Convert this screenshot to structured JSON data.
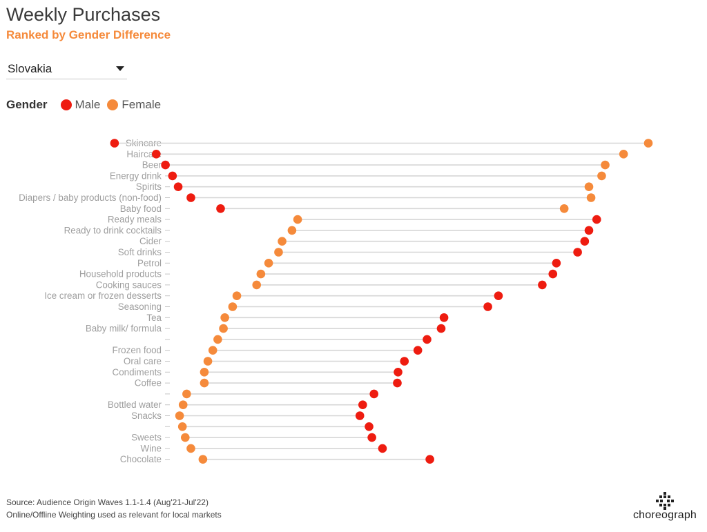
{
  "header": {
    "title": "Weekly Purchases",
    "subtitle": "Ranked by Gender Difference"
  },
  "filter": {
    "value": "Slovakia"
  },
  "legend": {
    "title": "Gender",
    "items": [
      {
        "label": "Male",
        "color": "#ee1c10"
      },
      {
        "label": "Female",
        "color": "#f58a3b"
      }
    ]
  },
  "colors": {
    "male": "#ee1c10",
    "female": "#f58a3b",
    "connector": "#d6d6d6",
    "tick_label": "#9e9e9e",
    "accent": "#f58a3b"
  },
  "chart_data": {
    "type": "scatter",
    "title": "",
    "xlabel": "",
    "ylabel": "",
    "xlim": [
      0,
      1
    ],
    "categories": [
      "Skincare",
      "Haircare",
      "Beer",
      "Energy drink",
      "Spirits",
      "Diapers / baby products (non-food)",
      "Baby food",
      "Ready meals",
      "Ready to drink cocktails",
      "Cider",
      "Soft drinks",
      "Petrol",
      "Household products",
      "Cooking sauces",
      "Ice cream or frozen desserts",
      "Seasoning",
      "Tea",
      "Baby milk/ formula",
      "",
      "Frozen food",
      "Oral care",
      "Condiments",
      "Coffee",
      "",
      "Bottled water",
      "Snacks",
      "",
      "Sweets",
      "Wine",
      "Chocolate"
    ],
    "series": [
      {
        "name": "Male",
        "values": [
          0.162,
          0.221,
          0.234,
          0.244,
          0.252,
          0.27,
          0.312,
          0.844,
          0.833,
          0.827,
          0.817,
          0.787,
          0.782,
          0.767,
          0.705,
          0.69,
          0.628,
          0.624,
          0.604,
          0.591,
          0.572,
          0.563,
          0.562,
          0.529,
          0.513,
          0.509,
          0.522,
          0.526,
          0.541,
          0.608
        ]
      },
      {
        "name": "Female",
        "values": [
          0.917,
          0.882,
          0.856,
          0.851,
          0.833,
          0.836,
          0.798,
          0.421,
          0.413,
          0.399,
          0.394,
          0.38,
          0.369,
          0.363,
          0.335,
          0.329,
          0.318,
          0.316,
          0.308,
          0.301,
          0.294,
          0.289,
          0.289,
          0.264,
          0.259,
          0.254,
          0.258,
          0.262,
          0.27,
          0.287
        ]
      }
    ],
    "grid": false,
    "legend_position": "top-left"
  },
  "footer": {
    "source_line1": "Source: Audience Origin Waves 1.1-1.4 (Aug'21-Jul'22)",
    "source_line2": "Online/Offline Weighting used as relevant for local markets",
    "logo_text": "choreograph"
  }
}
